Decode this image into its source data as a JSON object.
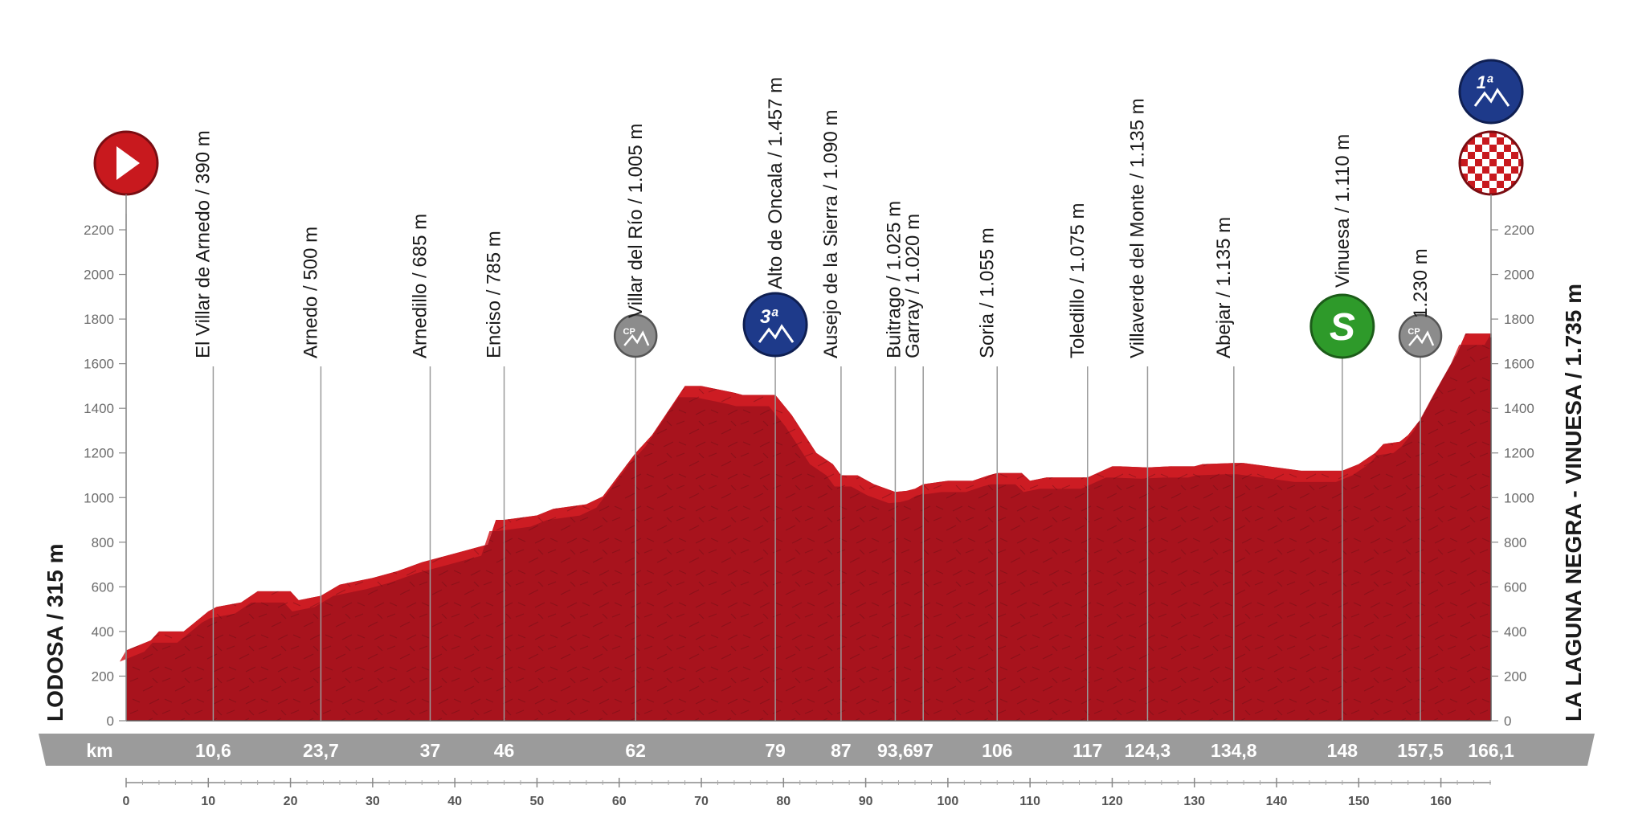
{
  "start_name": "LODOSA / 315 m",
  "finish_name": "LA LAGUNA NEGRA - VINUESA / 1.735 m",
  "km_label": "km",
  "colors": {
    "profile_fill": "#a8131d",
    "profile_dark": "#7c1119",
    "profile_top": "#d41e24",
    "km_band": "#9b9b9b",
    "cat_badge": "#1e3a8a",
    "sprint_badge": "#2e9a2a",
    "cp_badge": "#8c8c8c",
    "start_badge": "#c8191e"
  },
  "icons": {
    "start": "start-play-icon",
    "finish": "finish-checkered-flag-icon",
    "climb": "mountain-icon",
    "sprint": "sprint-s-icon",
    "checkpoint": "cp-icon"
  },
  "chart_data": {
    "type": "area",
    "title": "",
    "xlabel": "km",
    "ylabel": "",
    "xlim": [
      0,
      166.1
    ],
    "ylim": [
      0,
      2200
    ],
    "y_ticks": [
      0,
      200,
      400,
      600,
      800,
      1000,
      1200,
      1400,
      1600,
      1800,
      2000,
      2200
    ],
    "x_ticks": [
      0,
      10,
      20,
      30,
      40,
      50,
      60,
      70,
      80,
      90,
      100,
      110,
      120,
      130,
      140,
      150,
      160
    ],
    "grid": false,
    "legend": "none",
    "x": [
      0,
      3,
      4,
      7,
      8,
      10,
      11,
      14,
      16,
      20,
      21,
      23.7,
      26,
      30,
      33,
      36,
      37,
      40,
      44,
      45,
      46,
      50,
      52,
      56,
      58,
      62,
      64,
      68,
      70,
      74,
      75,
      77,
      79,
      81,
      84,
      86,
      87,
      89,
      91,
      93.6,
      95,
      96,
      97,
      100,
      103,
      105,
      106,
      109,
      110,
      112,
      116,
      117,
      120,
      121,
      124.3,
      127,
      130,
      131,
      134.8,
      136,
      139,
      140,
      143,
      147,
      148,
      150,
      152,
      153,
      155,
      156,
      157.5,
      160,
      162,
      163,
      166.1
    ],
    "y": [
      315,
      360,
      400,
      400,
      430,
      490,
      510,
      530,
      580,
      580,
      540,
      560,
      610,
      640,
      670,
      710,
      720,
      750,
      790,
      900,
      900,
      920,
      950,
      970,
      1005,
      1200,
      1280,
      1500,
      1500,
      1470,
      1460,
      1460,
      1460,
      1370,
      1200,
      1150,
      1100,
      1100,
      1060,
      1025,
      1030,
      1040,
      1060,
      1075,
      1075,
      1100,
      1110,
      1110,
      1075,
      1090,
      1090,
      1090,
      1140,
      1140,
      1135,
      1140,
      1140,
      1150,
      1155,
      1155,
      1140,
      1135,
      1120,
      1120,
      1120,
      1150,
      1200,
      1240,
      1250,
      1280,
      1350,
      1520,
      1650,
      1735,
      1735
    ],
    "points_of_interest": [
      {
        "km": 10.6,
        "name": "El Villar de Arnedo / 390 m",
        "km_label": "10,6",
        "badge": ""
      },
      {
        "km": 23.7,
        "name": "Arnedo / 500 m",
        "km_label": "23,7",
        "badge": ""
      },
      {
        "km": 37,
        "name": "Arnedillo / 685 m",
        "km_label": "37",
        "badge": ""
      },
      {
        "km": 46,
        "name": "Enciso / 785 m",
        "km_label": "46",
        "badge": ""
      },
      {
        "km": 62,
        "name": "Villar del Río / 1.005 m",
        "km_label": "62",
        "badge": "cp"
      },
      {
        "km": 79,
        "name": "Alto de Oncala / 1.457 m",
        "km_label": "79",
        "badge": "cat3"
      },
      {
        "km": 87,
        "name": "Ausejo de la Sierra / 1.090 m",
        "km_label": "87",
        "badge": ""
      },
      {
        "km": 93.6,
        "name": "Buitrago / 1.025 m",
        "km_label": "93,6",
        "badge": ""
      },
      {
        "km": 97,
        "name": "Garray / 1.020 m",
        "km_label": "97",
        "badge": ""
      },
      {
        "km": 106,
        "name": "Soria / 1.055 m",
        "km_label": "106",
        "badge": ""
      },
      {
        "km": 117,
        "name": "Toledillo / 1.075 m",
        "km_label": "117",
        "badge": ""
      },
      {
        "km": 124.3,
        "name": "Villaverde del Monte / 1.135 m",
        "km_label": "124,3",
        "badge": ""
      },
      {
        "km": 134.8,
        "name": "Abejar / 1.135 m",
        "km_label": "134,8",
        "badge": ""
      },
      {
        "km": 148,
        "name": "Vinuesa / 1.110 m",
        "km_label": "148",
        "badge": "sprint"
      },
      {
        "km": 157.5,
        "name": "1.230 m",
        "km_label": "157,5",
        "badge": "cp"
      },
      {
        "km": 166.1,
        "name": "",
        "km_label": "166,1",
        "badge": "finish"
      }
    ],
    "badge_text": {
      "cat3": "3ª",
      "cat1": "1ª",
      "sprint": "S",
      "cp": "CP"
    }
  }
}
